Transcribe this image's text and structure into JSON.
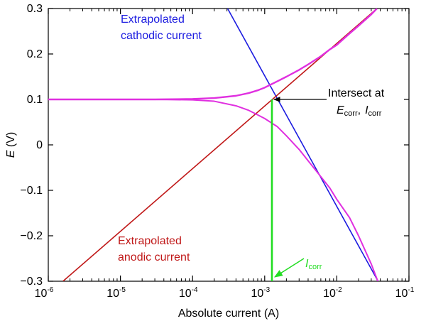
{
  "chart_data": {
    "type": "line",
    "title": "",
    "xlabel": "Absolute current (A)",
    "ylabel_italic": "E",
    "ylabel_rest": " (V)",
    "x_scale": "log",
    "xlim": [
      1e-06,
      0.1
    ],
    "ylim": [
      -0.3,
      0.3
    ],
    "x_ticks": [
      {
        "value": 1e-06,
        "base": "10",
        "exp": "-6"
      },
      {
        "value": 1e-05,
        "base": "10",
        "exp": "-5"
      },
      {
        "value": 0.0001,
        "base": "10",
        "exp": "-4"
      },
      {
        "value": 0.001,
        "base": "10",
        "exp": "-3"
      },
      {
        "value": 0.01,
        "base": "10",
        "exp": "-2"
      },
      {
        "value": 0.1,
        "base": "10",
        "exp": "-1"
      }
    ],
    "y_ticks": [
      {
        "value": 0.3,
        "label": "0.3"
      },
      {
        "value": 0.2,
        "label": "0.2"
      },
      {
        "value": 0.1,
        "label": "0.1"
      },
      {
        "value": 0.0,
        "label": "0"
      },
      {
        "value": -0.1,
        "label": "−0.1"
      },
      {
        "value": -0.2,
        "label": "−0.2"
      },
      {
        "value": -0.3,
        "label": "−0.3"
      }
    ],
    "series": [
      {
        "name": "Extrapolated cathodic current",
        "color": "#1c1ce0",
        "points": [
          [
            0.000306,
            0.3
          ],
          [
            0.0373,
            -0.3
          ]
        ]
      },
      {
        "name": "Extrapolated anodic current",
        "color": "#c01818",
        "points": [
          [
            1.6e-06,
            -0.3
          ],
          [
            0.036,
            0.3
          ]
        ]
      },
      {
        "name": "Measured upper branch",
        "color": "#e030e0",
        "points": [
          [
            1e-06,
            0.1
          ],
          [
            1e-05,
            0.1
          ],
          [
            3e-05,
            0.1
          ],
          [
            0.0001,
            0.101
          ],
          [
            0.0002,
            0.103
          ],
          [
            0.0004,
            0.108
          ],
          [
            0.0006,
            0.114
          ],
          [
            0.0008,
            0.12
          ],
          [
            0.001,
            0.126
          ],
          [
            0.0015,
            0.14
          ],
          [
            0.002,
            0.15
          ],
          [
            0.003,
            0.165
          ],
          [
            0.004,
            0.177
          ],
          [
            0.006,
            0.195
          ],
          [
            0.008,
            0.21
          ],
          [
            0.01,
            0.22
          ],
          [
            0.015,
            0.245
          ],
          [
            0.02,
            0.262
          ],
          [
            0.03,
            0.287
          ],
          [
            0.036,
            0.3
          ]
        ]
      },
      {
        "name": "Measured lower branch",
        "color": "#e030e0",
        "points": [
          [
            1e-06,
            0.1
          ],
          [
            1e-05,
            0.1
          ],
          [
            3e-05,
            0.1
          ],
          [
            0.0001,
            0.099
          ],
          [
            0.0002,
            0.096
          ],
          [
            0.0004,
            0.086
          ],
          [
            0.0006,
            0.076
          ],
          [
            0.0008,
            0.066
          ],
          [
            0.001,
            0.058
          ],
          [
            0.0015,
            0.04
          ],
          [
            0.002,
            0.02
          ],
          [
            0.003,
            -0.01
          ],
          [
            0.004,
            -0.035
          ],
          [
            0.006,
            -0.07
          ],
          [
            0.008,
            -0.095
          ],
          [
            0.01,
            -0.12
          ],
          [
            0.015,
            -0.16
          ],
          [
            0.02,
            -0.2
          ],
          [
            0.03,
            -0.262
          ],
          [
            0.037,
            -0.3
          ]
        ]
      },
      {
        "name": "Icorr line",
        "color": "#22dd22",
        "points": [
          [
            0.00126,
            -0.3
          ],
          [
            0.00126,
            0.1
          ]
        ]
      }
    ],
    "annotations": {
      "cathodic_line1": "Extrapolated",
      "cathodic_line2": "cathodic current",
      "anodic_line1": "Extrapolated",
      "anodic_line2": "anodic current",
      "intersect_line1": "Intersect at",
      "ecorr_main": "E",
      "ecorr_sub": "corr",
      "comma": ",",
      "icorr_main": "I",
      "icorr_sub": "corr",
      "icorr_label_main": "I",
      "icorr_label_sub": "corr",
      "intersect_point": [
        0.00126,
        0.1
      ]
    },
    "colors": {
      "cathodic": "#1c1ce0",
      "anodic": "#c01818",
      "measured": "#e030e0",
      "icorr": "#22dd22",
      "arrow": "#000000"
    }
  }
}
